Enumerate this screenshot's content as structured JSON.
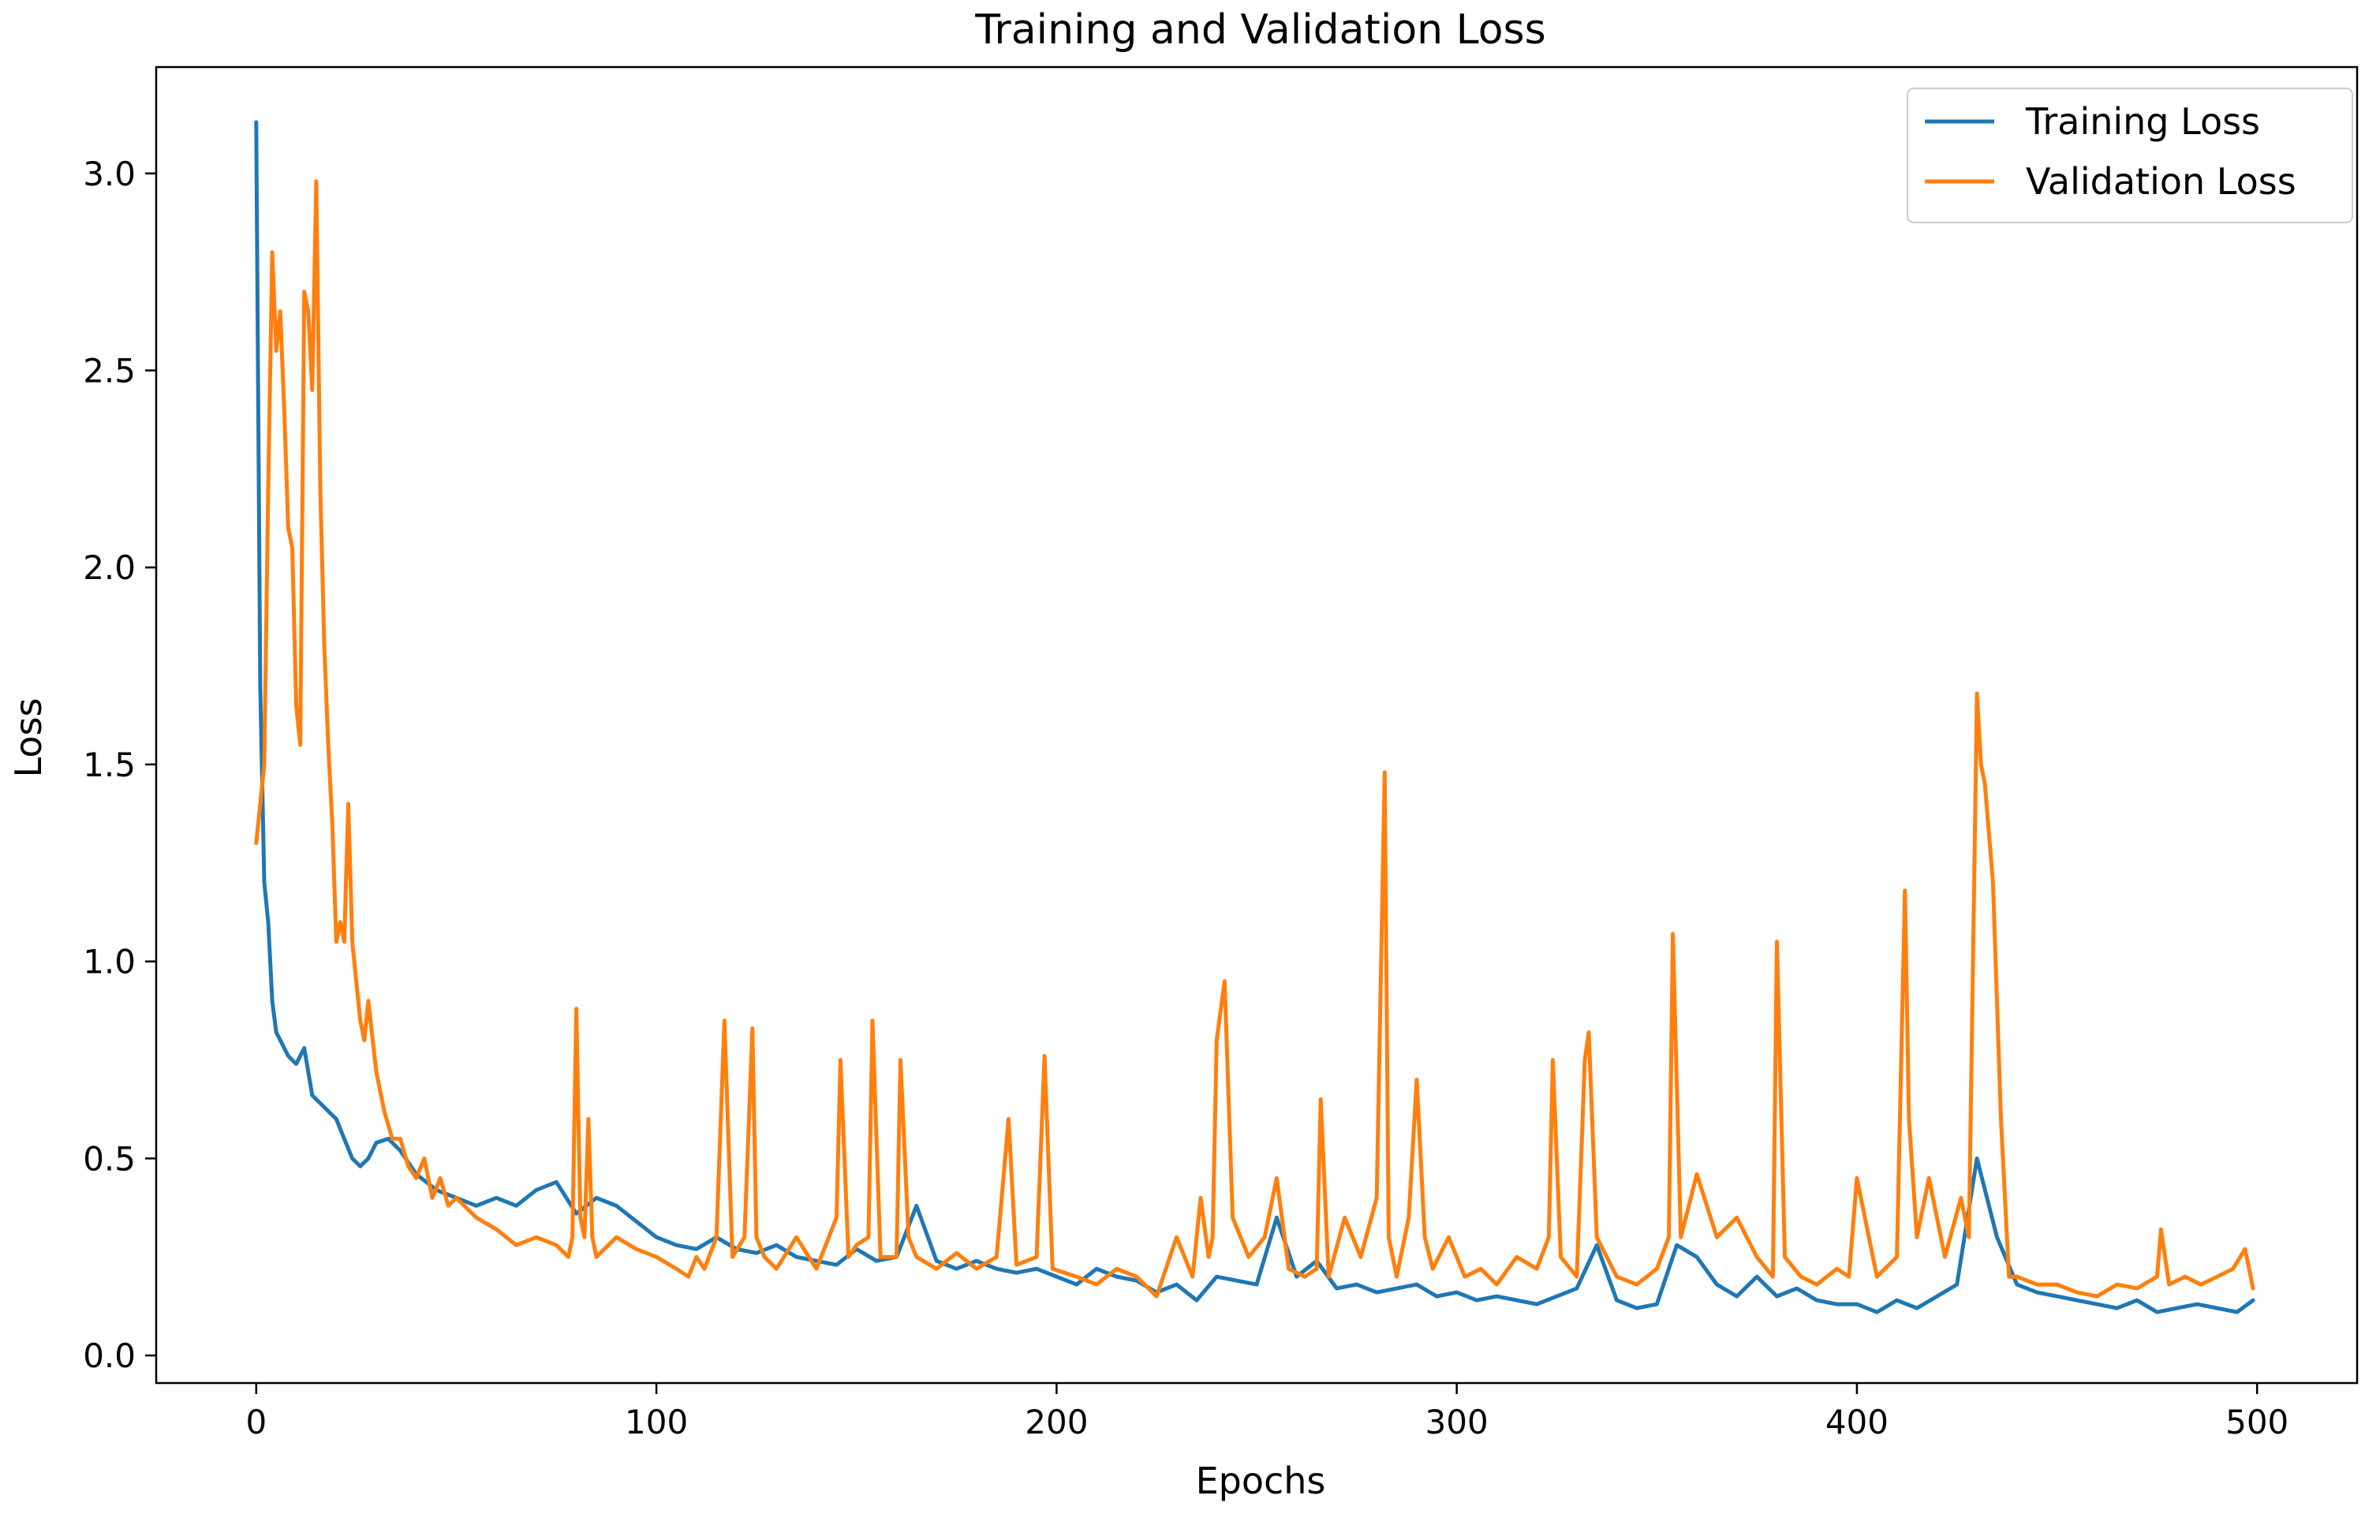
{
  "chart_data": {
    "type": "line",
    "title": "Training and Validation Loss",
    "xlabel": "Epochs",
    "ylabel": "Loss",
    "xlim": [
      -25,
      525
    ],
    "ylim": [
      -0.07,
      3.27
    ],
    "xticks": [
      0,
      100,
      200,
      300,
      400,
      500
    ],
    "xtick_labels": [
      "0",
      "100",
      "200",
      "300",
      "400",
      "500"
    ],
    "yticks": [
      0.0,
      0.5,
      1.0,
      1.5,
      2.0,
      2.5,
      3.0
    ],
    "ytick_labels": [
      "0.0",
      "0.5",
      "1.0",
      "1.5",
      "2.0",
      "2.5",
      "3.0"
    ],
    "grid": false,
    "legend_position": "top-right",
    "colors": {
      "training": "#1f77b4",
      "validation": "#ff7f0e",
      "legend_border": "#cccccc"
    },
    "series": [
      {
        "name": "Training Loss",
        "x": [
          0,
          1,
          2,
          3,
          4,
          5,
          6,
          8,
          10,
          12,
          14,
          16,
          18,
          20,
          22,
          24,
          26,
          28,
          30,
          33,
          36,
          40,
          45,
          50,
          55,
          60,
          65,
          70,
          75,
          80,
          85,
          90,
          95,
          100,
          105,
          110,
          115,
          120,
          125,
          130,
          135,
          140,
          145,
          150,
          155,
          160,
          165,
          170,
          175,
          180,
          185,
          190,
          195,
          200,
          205,
          210,
          215,
          220,
          225,
          230,
          235,
          240,
          245,
          250,
          255,
          260,
          265,
          270,
          275,
          280,
          285,
          290,
          295,
          300,
          305,
          310,
          315,
          320,
          325,
          330,
          335,
          340,
          345,
          350,
          355,
          360,
          365,
          370,
          375,
          380,
          385,
          390,
          395,
          400,
          405,
          410,
          415,
          420,
          425,
          430,
          435,
          440,
          445,
          450,
          455,
          460,
          465,
          470,
          475,
          480,
          485,
          490,
          495,
          499
        ],
        "values": [
          3.13,
          1.7,
          1.2,
          1.1,
          0.9,
          0.82,
          0.8,
          0.76,
          0.74,
          0.78,
          0.66,
          0.64,
          0.62,
          0.6,
          0.55,
          0.5,
          0.48,
          0.5,
          0.54,
          0.55,
          0.52,
          0.46,
          0.42,
          0.4,
          0.38,
          0.4,
          0.38,
          0.42,
          0.44,
          0.36,
          0.4,
          0.38,
          0.34,
          0.3,
          0.28,
          0.27,
          0.3,
          0.27,
          0.26,
          0.28,
          0.25,
          0.24,
          0.23,
          0.27,
          0.24,
          0.25,
          0.38,
          0.24,
          0.22,
          0.24,
          0.22,
          0.21,
          0.22,
          0.2,
          0.18,
          0.22,
          0.2,
          0.19,
          0.16,
          0.18,
          0.14,
          0.2,
          0.19,
          0.18,
          0.35,
          0.2,
          0.24,
          0.17,
          0.18,
          0.16,
          0.17,
          0.18,
          0.15,
          0.16,
          0.14,
          0.15,
          0.14,
          0.13,
          0.15,
          0.17,
          0.28,
          0.14,
          0.12,
          0.13,
          0.28,
          0.25,
          0.18,
          0.15,
          0.2,
          0.15,
          0.17,
          0.14,
          0.13,
          0.13,
          0.11,
          0.14,
          0.12,
          0.15,
          0.18,
          0.5,
          0.3,
          0.18,
          0.16,
          0.15,
          0.14,
          0.13,
          0.12,
          0.14,
          0.11,
          0.12,
          0.13,
          0.12,
          0.11,
          0.14
        ]
      },
      {
        "name": "Validation Loss",
        "x": [
          0,
          2,
          3,
          4,
          5,
          6,
          7,
          8,
          9,
          10,
          11,
          12,
          13,
          14,
          15,
          16,
          17,
          18,
          19,
          20,
          21,
          22,
          23,
          24,
          25,
          26,
          27,
          28,
          30,
          32,
          34,
          36,
          38,
          40,
          42,
          44,
          46,
          48,
          50,
          55,
          60,
          65,
          70,
          75,
          78,
          79,
          80,
          81,
          82,
          83,
          84,
          85,
          90,
          95,
          100,
          105,
          108,
          110,
          112,
          115,
          117,
          119,
          122,
          124,
          125,
          127,
          130,
          135,
          140,
          145,
          146,
          148,
          150,
          153,
          154,
          156,
          160,
          161,
          163,
          165,
          170,
          175,
          180,
          185,
          188,
          190,
          195,
          197,
          199,
          205,
          210,
          215,
          220,
          225,
          230,
          234,
          236,
          238,
          239,
          240,
          242,
          244,
          248,
          252,
          255,
          258,
          262,
          265,
          266,
          268,
          272,
          276,
          280,
          282,
          283,
          285,
          288,
          290,
          292,
          294,
          298,
          302,
          306,
          310,
          315,
          320,
          323,
          324,
          326,
          330,
          332,
          333,
          335,
          340,
          345,
          350,
          353,
          354,
          356,
          360,
          365,
          370,
          375,
          379,
          380,
          382,
          386,
          390,
          395,
          398,
          400,
          405,
          410,
          412,
          413,
          415,
          418,
          422,
          426,
          428,
          430,
          431,
          432,
          434,
          436,
          438,
          440,
          445,
          450,
          455,
          460,
          465,
          470,
          475,
          476,
          478,
          482,
          486,
          490,
          494,
          497,
          499
        ],
        "values": [
          1.3,
          1.5,
          2.2,
          2.8,
          2.55,
          2.65,
          2.4,
          2.1,
          2.05,
          1.65,
          1.55,
          2.7,
          2.65,
          2.45,
          2.98,
          2.2,
          1.8,
          1.55,
          1.35,
          1.05,
          1.1,
          1.05,
          1.4,
          1.05,
          0.95,
          0.85,
          0.8,
          0.9,
          0.72,
          0.62,
          0.55,
          0.55,
          0.48,
          0.45,
          0.5,
          0.4,
          0.45,
          0.38,
          0.4,
          0.35,
          0.32,
          0.28,
          0.3,
          0.28,
          0.25,
          0.3,
          0.88,
          0.35,
          0.3,
          0.6,
          0.3,
          0.25,
          0.3,
          0.27,
          0.25,
          0.22,
          0.2,
          0.25,
          0.22,
          0.3,
          0.85,
          0.25,
          0.3,
          0.83,
          0.3,
          0.25,
          0.22,
          0.3,
          0.22,
          0.35,
          0.75,
          0.25,
          0.28,
          0.3,
          0.85,
          0.25,
          0.25,
          0.75,
          0.3,
          0.25,
          0.22,
          0.26,
          0.22,
          0.25,
          0.6,
          0.23,
          0.25,
          0.76,
          0.22,
          0.2,
          0.18,
          0.22,
          0.2,
          0.15,
          0.3,
          0.2,
          0.4,
          0.25,
          0.3,
          0.8,
          0.95,
          0.35,
          0.25,
          0.3,
          0.45,
          0.22,
          0.2,
          0.22,
          0.65,
          0.2,
          0.35,
          0.25,
          0.4,
          1.48,
          0.3,
          0.2,
          0.35,
          0.7,
          0.3,
          0.22,
          0.3,
          0.2,
          0.22,
          0.18,
          0.25,
          0.22,
          0.3,
          0.75,
          0.25,
          0.2,
          0.75,
          0.82,
          0.3,
          0.2,
          0.18,
          0.22,
          0.3,
          1.07,
          0.3,
          0.46,
          0.3,
          0.35,
          0.25,
          0.2,
          1.05,
          0.25,
          0.2,
          0.18,
          0.22,
          0.2,
          0.45,
          0.2,
          0.25,
          1.18,
          0.6,
          0.3,
          0.45,
          0.25,
          0.4,
          0.3,
          1.68,
          1.5,
          1.45,
          1.2,
          0.6,
          0.2,
          0.2,
          0.18,
          0.18,
          0.16,
          0.15,
          0.18,
          0.17,
          0.2,
          0.32,
          0.18,
          0.2,
          0.18,
          0.2,
          0.22,
          0.27,
          0.17
        ]
      }
    ]
  }
}
